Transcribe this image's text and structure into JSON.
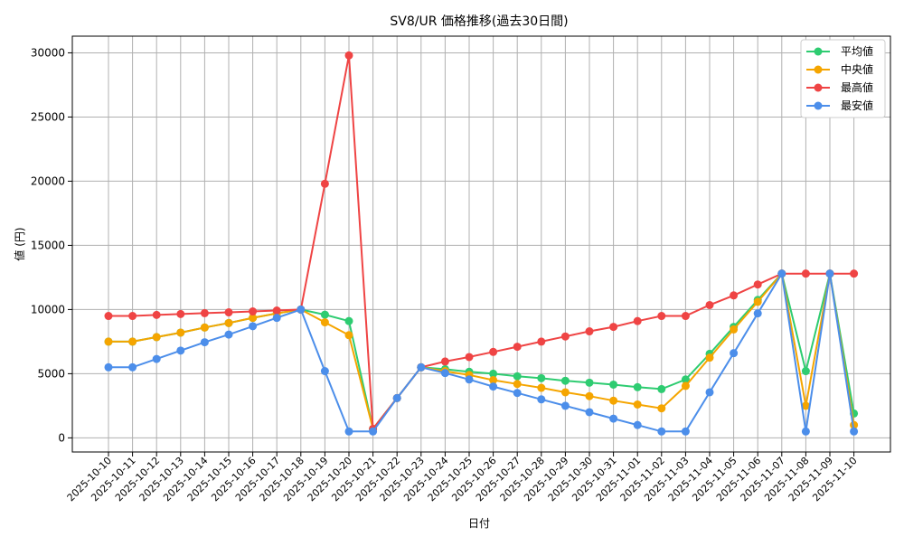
{
  "chart_data": {
    "type": "line",
    "title": "SV8/UR 価格推移(過去30日間)",
    "xlabel": "日付",
    "ylabel": "値 (円)",
    "ylim": [
      -1100,
      31300
    ],
    "yticks": [
      0,
      5000,
      10000,
      15000,
      20000,
      25000,
      30000
    ],
    "grid": true,
    "legend_position": "top-right",
    "categories": [
      "2025-10-10",
      "2025-10-11",
      "2025-10-12",
      "2025-10-13",
      "2025-10-14",
      "2025-10-15",
      "2025-10-16",
      "2025-10-17",
      "2025-10-18",
      "2025-10-19",
      "2025-10-20",
      "2025-10-21",
      "2025-10-22",
      "2025-10-23",
      "2025-10-24",
      "2025-10-25",
      "2025-10-26",
      "2025-10-27",
      "2025-10-28",
      "2025-10-29",
      "2025-10-30",
      "2025-10-31",
      "2025-11-01",
      "2025-11-02",
      "2025-11-03",
      "2025-11-04",
      "2025-11-05",
      "2025-11-06",
      "2025-11-07",
      "2025-11-08",
      "2025-11-09",
      "2025-11-10"
    ],
    "series": [
      {
        "name": "平均値",
        "color": "#2ecc71",
        "values": [
          7500,
          7500,
          7850,
          8200,
          8600,
          8950,
          9350,
          9700,
          10000,
          9600,
          9100,
          700,
          3100,
          5500,
          5350,
          5150,
          5000,
          4800,
          4650,
          4450,
          4300,
          4150,
          3950,
          3800,
          4550,
          6550,
          8650,
          10750,
          12800,
          5200,
          12800,
          1900
        ]
      },
      {
        "name": "中央値",
        "color": "#f5a500",
        "values": [
          7500,
          7500,
          7850,
          8200,
          8600,
          8950,
          9350,
          9700,
          10000,
          9000,
          8000,
          700,
          3100,
          5500,
          5200,
          4900,
          4500,
          4200,
          3900,
          3550,
          3250,
          2900,
          2600,
          2300,
          4050,
          6250,
          8450,
          10600,
          12800,
          2500,
          12800,
          1000
        ]
      },
      {
        "name": "最高値",
        "color": "#ef4444",
        "values": [
          9500,
          9500,
          9580,
          9650,
          9720,
          9780,
          9850,
          9920,
          10000,
          19800,
          29800,
          700,
          3100,
          5500,
          5950,
          6300,
          6700,
          7100,
          7500,
          7900,
          8300,
          8650,
          9100,
          9500,
          9500,
          10350,
          11100,
          11950,
          12800,
          12800,
          12800,
          12800
        ]
      },
      {
        "name": "最安値",
        "color": "#4c8eea",
        "values": [
          5500,
          5500,
          6150,
          6800,
          7450,
          8050,
          8700,
          9350,
          10000,
          5200,
          500,
          500,
          3100,
          5500,
          5050,
          4550,
          4000,
          3500,
          3000,
          2500,
          2000,
          1500,
          1000,
          500,
          500,
          3550,
          6600,
          9700,
          12800,
          500,
          12800,
          500
        ]
      }
    ]
  }
}
